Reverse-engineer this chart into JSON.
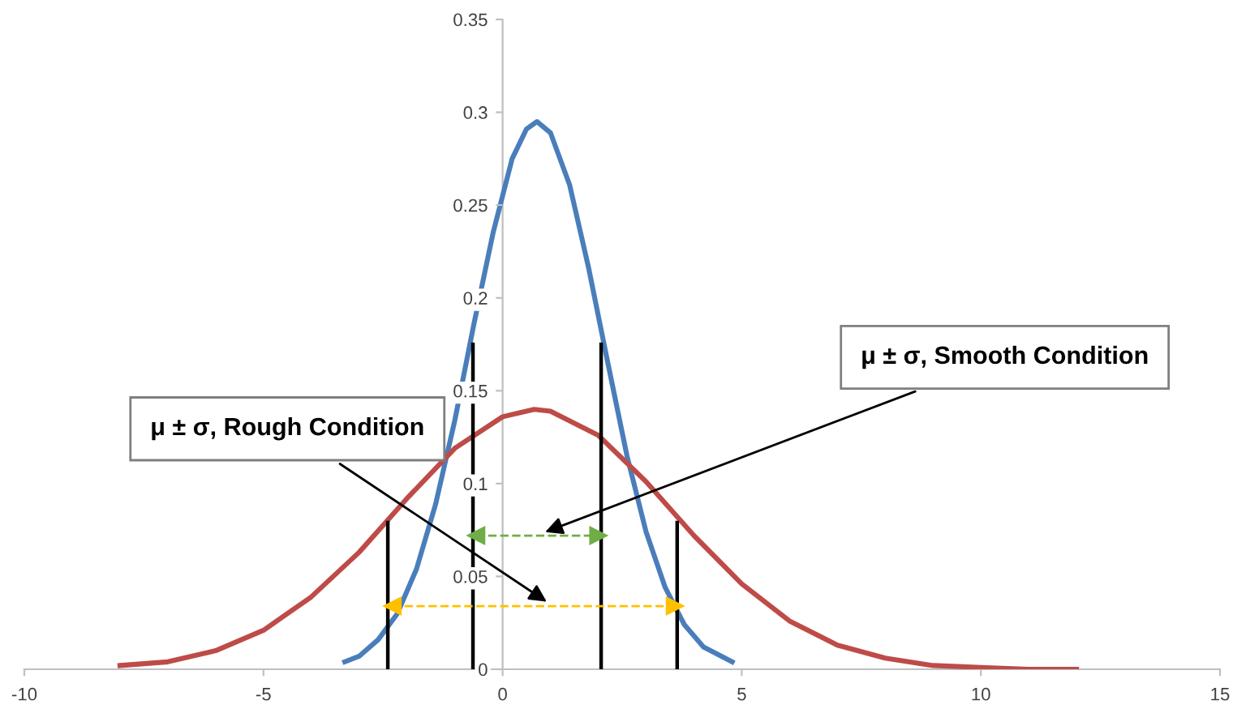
{
  "chart_data": {
    "type": "line",
    "xlim": [
      -10,
      15
    ],
    "xticks": [
      -10,
      -5,
      0,
      5,
      10,
      15
    ],
    "ylim": [
      0,
      0.35
    ],
    "yticks": [
      0,
      0.05,
      0.1,
      0.15,
      0.2,
      0.25,
      0.3,
      0.35
    ],
    "grid": false,
    "legend": false,
    "marker": "none",
    "line_style": "solid",
    "series": [
      {
        "color": "#4a7ebb",
        "x": [
          -3.3,
          -3,
          -2.6,
          -2.2,
          -1.8,
          -1.4,
          -1,
          -0.6,
          -0.2,
          0.2,
          0.5,
          0.72,
          1,
          1.4,
          1.8,
          2.2,
          2.6,
          3,
          3.4,
          3.8,
          4.2,
          4.8
        ],
        "values": [
          0.004,
          0.007,
          0.016,
          0.03,
          0.054,
          0.089,
          0.134,
          0.186,
          0.235,
          0.275,
          0.291,
          0.295,
          0.289,
          0.261,
          0.216,
          0.165,
          0.115,
          0.074,
          0.044,
          0.024,
          0.012,
          0.004
        ]
      },
      {
        "color": "#be4b48",
        "x": [
          -8,
          -7,
          -6,
          -5,
          -4,
          -3,
          -2,
          -1,
          0,
          0.66,
          1,
          2,
          3,
          4,
          5,
          6,
          7,
          8,
          9,
          10,
          11,
          12
        ],
        "values": [
          0.002,
          0.004,
          0.01,
          0.021,
          0.039,
          0.063,
          0.092,
          0.119,
          0.136,
          0.14,
          0.139,
          0.126,
          0.101,
          0.072,
          0.046,
          0.026,
          0.013,
          0.006,
          0.002,
          0.001,
          0,
          0
        ]
      },
      {
        "color": "#000000",
        "x": [
          -0.62,
          -0.62
        ],
        "values": [
          0,
          0.175
        ]
      },
      {
        "color": "#000000",
        "x": [
          2.06,
          2.06
        ],
        "values": [
          0,
          0.175
        ]
      },
      {
        "color": "#000000",
        "x": [
          -2.4,
          -2.4
        ],
        "values": [
          0,
          0.079
        ]
      },
      {
        "color": "#000000",
        "x": [
          3.65,
          3.65
        ],
        "values": [
          0,
          0.079
        ]
      },
      {
        "color": "#70ad47",
        "x": [
          -0.55,
          2.0
        ],
        "values": [
          0.072,
          0.072
        ],
        "line_style": "dashed",
        "marker": "triangle"
      },
      {
        "color": "#ffc000",
        "x": [
          -2.3,
          3.6
        ],
        "values": [
          0.034,
          0.034
        ],
        "line_style": "dashed",
        "marker": "triangle"
      }
    ],
    "annotations": [
      {
        "text": "μ ± σ, Smooth Condition",
        "x": 0.8,
        "y": 0.073
      },
      {
        "text": "μ ± σ, Rough Condition",
        "x": 1.0,
        "y": 0.035
      }
    ]
  }
}
